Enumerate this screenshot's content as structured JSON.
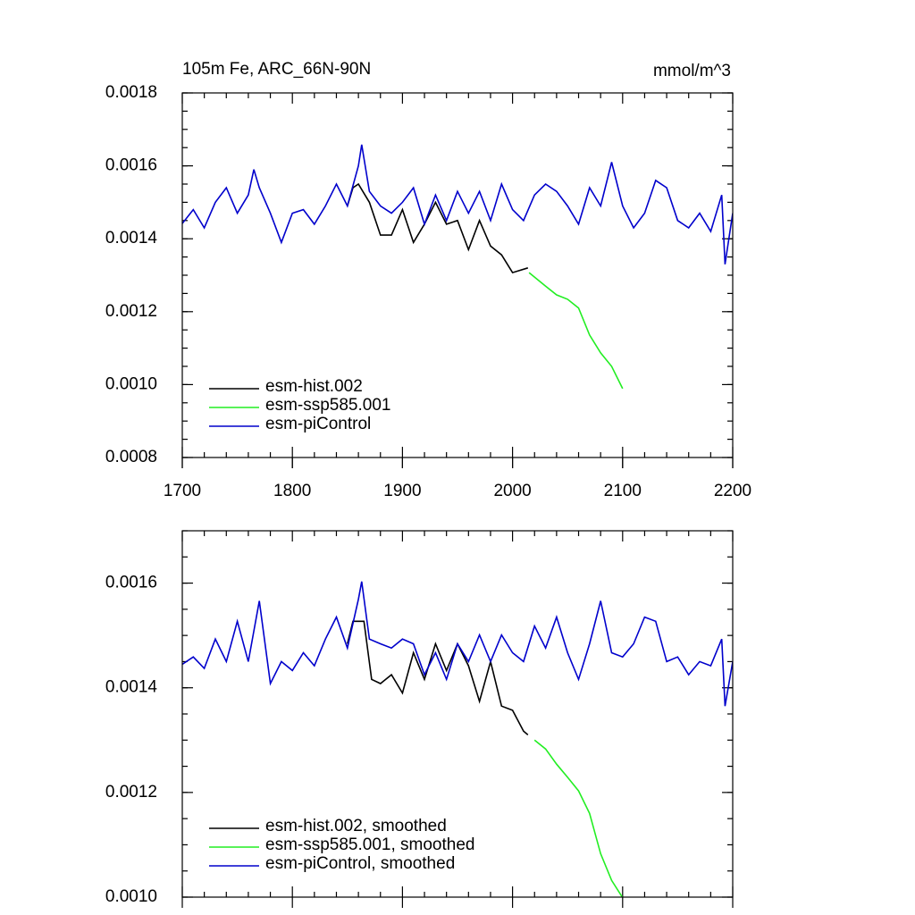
{
  "chart_data": [
    {
      "type": "line",
      "title": "105m Fe, ARC_66N-90N",
      "subtitle": "mmol/m^3",
      "xlim": [
        1700,
        2200
      ],
      "xticks": [
        1700,
        1800,
        1900,
        2000,
        2100,
        2200
      ],
      "ylim": [
        0.0008,
        0.0018
      ],
      "yticks": [
        0.0008,
        {
          "value": 0.001,
          "label": "0.0010"
        },
        0.0012,
        0.0014,
        0.0016,
        0.0018
      ],
      "legend": "lower left",
      "series": [
        {
          "name": "esm-hist.002",
          "color": "#000000",
          "x": [
            1850,
            1855,
            1860,
            1870,
            1880,
            1890,
            1900,
            1910,
            1920,
            1930,
            1940,
            1950,
            1960,
            1970,
            1980,
            1990,
            2000,
            2014
          ],
          "values": [
            0.00149,
            0.00154,
            0.00155,
            0.0015,
            0.00141,
            0.00141,
            0.00148,
            0.00139,
            0.00144,
            0.0015,
            0.00144,
            0.00145,
            0.00137,
            0.00145,
            0.00138,
            0.001356,
            0.001307,
            0.00132
          ]
        },
        {
          "name": "esm-ssp585.001",
          "color": "#22ee22",
          "x": [
            2015,
            2030,
            2040,
            2050,
            2060,
            2070,
            2080,
            2090,
            2100
          ],
          "values": [
            0.001307,
            0.00127,
            0.001246,
            0.001234,
            0.00121,
            0.001136,
            0.001087,
            0.00105,
            0.000989
          ]
        },
        {
          "name": "esm-piControl",
          "color": "#0000cc",
          "x": [
            1700,
            1710,
            1720,
            1730,
            1740,
            1750,
            1760,
            1765,
            1770,
            1780,
            1790,
            1800,
            1810,
            1820,
            1830,
            1840,
            1850,
            1860,
            1863,
            1870,
            1880,
            1890,
            1900,
            1910,
            1920,
            1930,
            1940,
            1950,
            1960,
            1970,
            1980,
            1990,
            2000,
            2010,
            2020,
            2030,
            2040,
            2050,
            2060,
            2070,
            2080,
            2090,
            2100,
            2110,
            2120,
            2130,
            2140,
            2150,
            2160,
            2170,
            2180,
            2190,
            2193,
            2200
          ],
          "values": [
            0.001442,
            0.00148,
            0.00143,
            0.0015,
            0.00154,
            0.00147,
            0.00152,
            0.00159,
            0.00154,
            0.00147,
            0.00139,
            0.00147,
            0.00148,
            0.00144,
            0.00149,
            0.00155,
            0.00149,
            0.0016,
            0.001658,
            0.00153,
            0.00149,
            0.00147,
            0.0015,
            0.00154,
            0.00144,
            0.00152,
            0.00145,
            0.00153,
            0.00147,
            0.00153,
            0.00145,
            0.00155,
            0.00148,
            0.00145,
            0.00152,
            0.00155,
            0.00153,
            0.00149,
            0.00144,
            0.00154,
            0.00149,
            0.00161,
            0.00149,
            0.00143,
            0.00147,
            0.00156,
            0.00154,
            0.00145,
            0.00143,
            0.00147,
            0.00142,
            0.00152,
            0.00133,
            0.00147
          ]
        }
      ]
    },
    {
      "type": "line",
      "xlim": [
        1700,
        2200
      ],
      "ylim": [
        0.001,
        0.0017
      ],
      "yticks": [
        {
          "value": 0.001,
          "label": "0.0010"
        },
        0.0012,
        0.0014,
        0.0016
      ],
      "legend": "lower left",
      "series": [
        {
          "name": "esm-hist.002, smoothed",
          "color": "#000000",
          "x": [
            1850,
            1855,
            1865,
            1872,
            1880,
            1890,
            1900,
            1910,
            1920,
            1930,
            1940,
            1950,
            1960,
            1970,
            1980,
            1990,
            2000,
            2010,
            2014
          ],
          "values": [
            0.001484,
            0.001527,
            0.001527,
            0.001416,
            0.001408,
            0.001425,
            0.00139,
            0.001467,
            0.001416,
            0.001484,
            0.001433,
            0.001484,
            0.001442,
            0.001374,
            0.00145,
            0.001365,
            0.001357,
            0.001317,
            0.00131
          ]
        },
        {
          "name": "esm-ssp585.001, smoothed",
          "color": "#22ee22",
          "x": [
            2020,
            2030,
            2040,
            2050,
            2060,
            2070,
            2080,
            2090,
            2100
          ],
          "values": [
            0.0013,
            0.001283,
            0.001254,
            0.001229,
            0.001203,
            0.00116,
            0.001083,
            0.001032,
            0.000999
          ]
        },
        {
          "name": "esm-piControl, smoothed",
          "color": "#0000cc",
          "x": [
            1700,
            1710,
            1720,
            1730,
            1740,
            1750,
            1760,
            1770,
            1780,
            1790,
            1800,
            1810,
            1820,
            1830,
            1840,
            1850,
            1860,
            1863,
            1870,
            1880,
            1890,
            1900,
            1910,
            1920,
            1930,
            1940,
            1950,
            1960,
            1970,
            1980,
            1990,
            2000,
            2010,
            2020,
            2030,
            2040,
            2050,
            2060,
            2070,
            2080,
            2090,
            2100,
            2110,
            2120,
            2130,
            2140,
            2150,
            2160,
            2170,
            2180,
            2190,
            2193,
            2200
          ],
          "values": [
            0.001445,
            0.001459,
            0.001437,
            0.001493,
            0.00145,
            0.001527,
            0.00145,
            0.001566,
            0.001408,
            0.00145,
            0.001433,
            0.001467,
            0.001442,
            0.001493,
            0.001535,
            0.001476,
            0.001569,
            0.001603,
            0.001493,
            0.001484,
            0.001476,
            0.001493,
            0.001484,
            0.001425,
            0.001467,
            0.001416,
            0.001484,
            0.00145,
            0.001501,
            0.00145,
            0.001501,
            0.001467,
            0.00145,
            0.001518,
            0.001476,
            0.001535,
            0.001467,
            0.001416,
            0.001484,
            0.001566,
            0.001467,
            0.001459,
            0.001484,
            0.001535,
            0.001527,
            0.00145,
            0.001459,
            0.001425,
            0.00145,
            0.001442,
            0.001493,
            0.001365,
            0.00145
          ]
        }
      ]
    }
  ]
}
